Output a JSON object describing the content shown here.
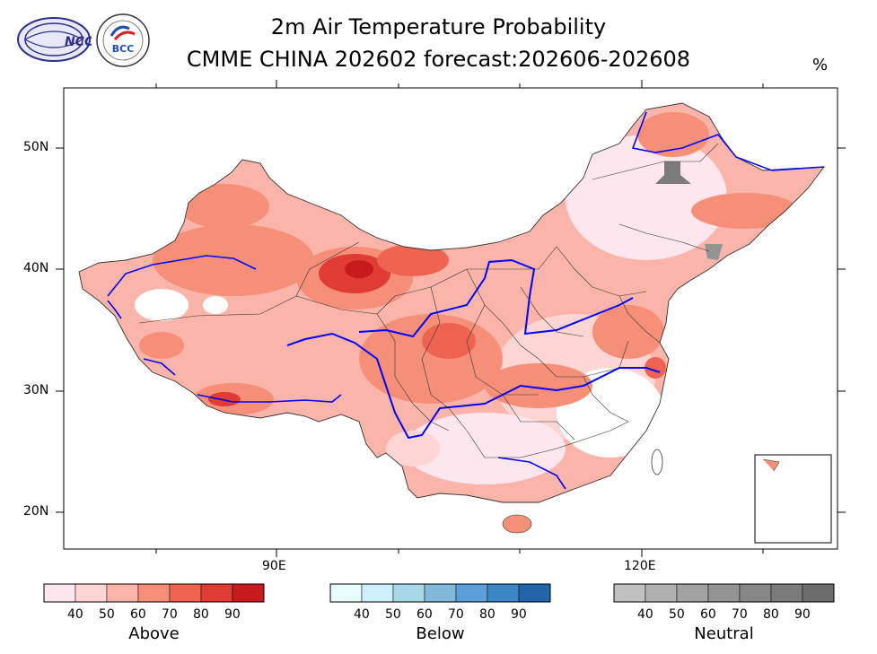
{
  "header": {
    "title_line1": "2m Air Temperature Probability",
    "title_line2": "CMME CHINA 202602 forecast:202606-202608",
    "unit": "%"
  },
  "logos": [
    {
      "name": "NCC",
      "text": "NCC"
    },
    {
      "name": "BCC",
      "text": "BCC"
    }
  ],
  "axes": {
    "y_labels": [
      "50N",
      "40N",
      "30N",
      "20N"
    ],
    "x_labels": [
      "90E",
      "120E"
    ]
  },
  "legends": [
    {
      "label": "Above",
      "ticks": [
        "40",
        "50",
        "60",
        "70",
        "80",
        "90"
      ],
      "colors": [
        "#fde6ee",
        "#fdd5d3",
        "#fbb4a9",
        "#f68f78",
        "#ef6450",
        "#e03c33",
        "#c81b1e"
      ]
    },
    {
      "label": "Below",
      "ticks": [
        "40",
        "50",
        "60",
        "70",
        "80",
        "90"
      ],
      "colors": [
        "#e8fbfe",
        "#cdf0fa",
        "#a7d8e7",
        "#80b9d9",
        "#5a9fd7",
        "#3d86c6",
        "#2265a9"
      ]
    },
    {
      "label": "Neutral",
      "ticks": [
        "40",
        "50",
        "60",
        "70",
        "80",
        "90"
      ],
      "colors": [
        "#c0c0c0",
        "#b0b0b0",
        "#a2a2a2",
        "#939393",
        "#878787",
        "#7b7b7b",
        "#6d6d6d"
      ]
    }
  ]
}
